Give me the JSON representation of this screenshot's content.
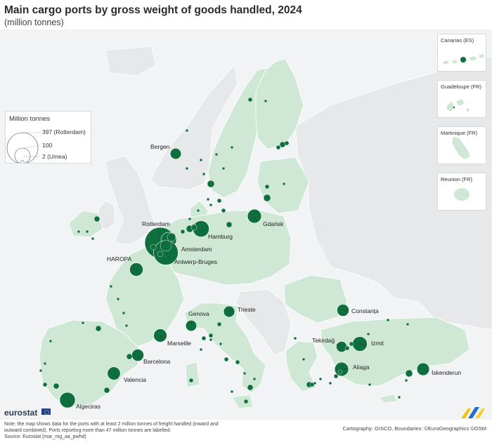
{
  "header": {
    "title": "Main cargo ports by gross weight of goods handled, 2024",
    "subtitle": "(million tonnes)"
  },
  "legend": {
    "title": "Million tonnes",
    "max_label": "397 (Rotterdam)",
    "mid_label": "100",
    "min_label": "2 (Umea)"
  },
  "colors": {
    "sea": "#f1f3f5",
    "eu_land": "#cfe8d5",
    "non_eu_land": "#e6e8ea",
    "port": "#0d6e3e"
  },
  "labeled_ports": [
    {
      "name": "Rotterdam",
      "tonnes": 397
    },
    {
      "name": "Amsterdam",
      "tonnes": 100
    },
    {
      "name": "Antwerp-Bruges",
      "tonnes": 250
    },
    {
      "name": "Hamburg",
      "tonnes": 110
    },
    {
      "name": "Gdańsk",
      "tonnes": 80
    },
    {
      "name": "Bergen",
      "tonnes": 50
    },
    {
      "name": "HAROPA",
      "tonnes": 75
    },
    {
      "name": "Marseille",
      "tonnes": 72
    },
    {
      "name": "Barcelona",
      "tonnes": 60
    },
    {
      "name": "Valencia",
      "tonnes": 70
    },
    {
      "name": "Algeciras",
      "tonnes": 100
    },
    {
      "name": "Genova",
      "tonnes": 50
    },
    {
      "name": "Trieste",
      "tonnes": 52
    },
    {
      "name": "Constanța",
      "tonnes": 60
    },
    {
      "name": "Tekirdağ",
      "tonnes": 48
    },
    {
      "name": "Izmit",
      "tonnes": 90
    },
    {
      "name": "Aliaga",
      "tonnes": 80
    },
    {
      "name": "İskenderun",
      "tonnes": 65
    }
  ],
  "insets": [
    {
      "name": "Canarias (ES)"
    },
    {
      "name": "Guadeloupe (FR)"
    },
    {
      "name": "Martinique (FR)"
    },
    {
      "name": "Reunion (FR)"
    }
  ],
  "footer": {
    "brand": "eurostat",
    "note": "Note: the map shows data for the ports with at least 2 million tonnes of freight handled (inward and outward combined). Ports reporting more than 47 million tonnes are labelled.",
    "source": "Source: Eurostat (mar_mg_aa_pwhd)",
    "credits": "Cartography: GISCO, Boundaries: ©EuroGeographics ©OSM"
  }
}
